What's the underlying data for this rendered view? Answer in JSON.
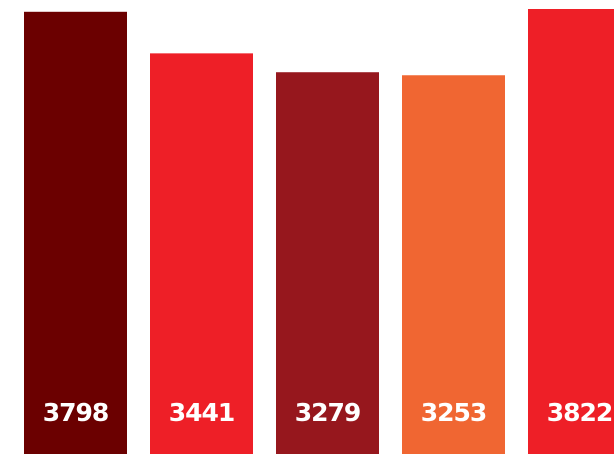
{
  "chart_data": {
    "type": "bar",
    "values": [
      3798,
      3441,
      3279,
      3253,
      3822
    ],
    "labels": [
      "3798",
      "3441",
      "3279",
      "3253",
      "3822"
    ],
    "colors": [
      "#6b0000",
      "#ee1f27",
      "#96171d",
      "#f06632",
      "#ee1f27"
    ],
    "title": "",
    "xlabel": "",
    "ylabel": "",
    "grid": false,
    "legend": "none"
  }
}
